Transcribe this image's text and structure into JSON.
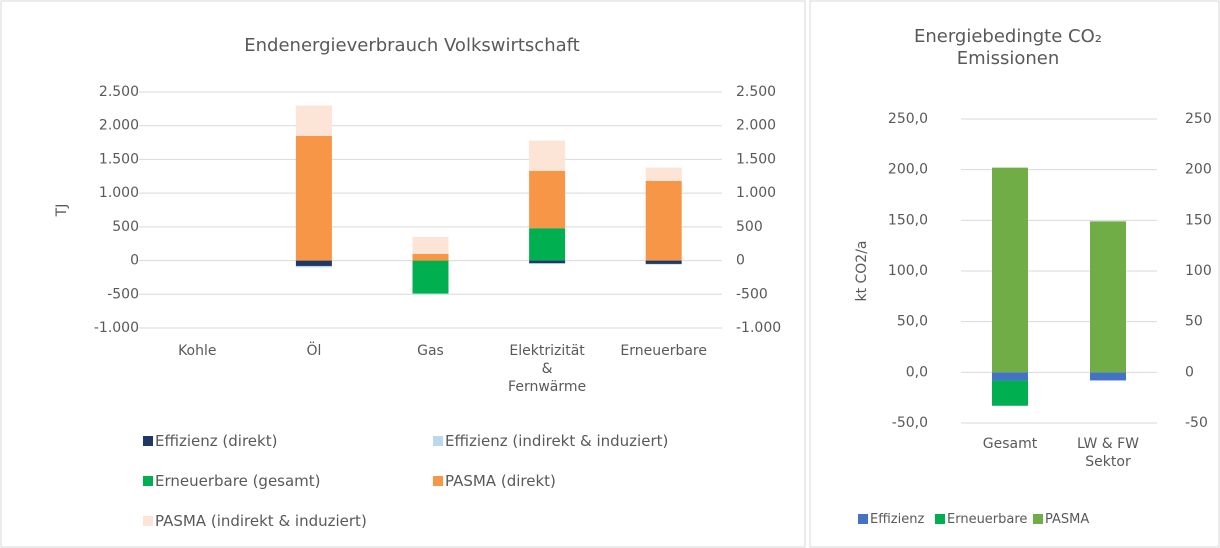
{
  "chart_data": [
    {
      "type": "bar",
      "stacked": true,
      "title": "Endenergieverbrauch Volkswirtschaft",
      "y_label": "TJ",
      "categories": [
        "Kohle",
        "Öl",
        "Gas",
        "Elektrizität\n&\nFernwärme",
        "Erneuerbare"
      ],
      "series": [
        {
          "name": "Effizienz (direkt)",
          "color": "#1f3864",
          "values": [
            0,
            -80,
            0,
            -40,
            -50
          ]
        },
        {
          "name": "Effizienz (indirekt & induziert)",
          "color": "#bdd7ee",
          "values": [
            0,
            -20,
            0,
            -10,
            -10
          ]
        },
        {
          "name": "Erneuerbare (gesamt)",
          "color": "#00b050",
          "values": [
            0,
            0,
            -490,
            480,
            0
          ]
        },
        {
          "name": "PASMA (direkt)",
          "color": "#f79646",
          "values": [
            0,
            1850,
            100,
            850,
            1180
          ]
        },
        {
          "name": "PASMA (indirekt & induziert)",
          "color": "#fce4d6",
          "values": [
            0,
            450,
            250,
            450,
            200
          ]
        }
      ],
      "ylim": [
        -1000,
        2500
      ],
      "yticks": [
        {
          "value": -1000,
          "label": "-1.000"
        },
        -500,
        0,
        500,
        {
          "value": 1000,
          "label": "1.000"
        },
        {
          "value": 1500,
          "label": "1.500"
        },
        {
          "value": 2000,
          "label": "2.000"
        },
        {
          "value": 2500,
          "label": "2.500"
        }
      ],
      "y2lim": [
        -1000,
        2500
      ],
      "y2ticks": [
        {
          "value": -1000,
          "label": "-1.000"
        },
        -500,
        0,
        500,
        {
          "value": 1000,
          "label": "1.000"
        },
        {
          "value": 1500,
          "label": "1.500"
        },
        {
          "value": 2000,
          "label": "2.000"
        },
        {
          "value": 2500,
          "label": "2.500"
        }
      ],
      "grid": true,
      "legend": "bottom"
    },
    {
      "type": "bar",
      "stacked": true,
      "title": "Energiebedingte CO₂\nEmissionen",
      "y_label": "kt CO2/a",
      "categories": [
        "Gesamt",
        "LW & FW\nSektor"
      ],
      "series": [
        {
          "name": "Effizienz",
          "color": "#4472c4",
          "values": [
            -8,
            -8
          ]
        },
        {
          "name": "Erneuerbare",
          "color": "#00b050",
          "values": [
            -25,
            0
          ]
        },
        {
          "name": "PASMA",
          "color": "#70ad47",
          "values": [
            202,
            149
          ]
        }
      ],
      "ylim": [
        -50,
        250
      ],
      "yticks": [
        {
          "value": -50,
          "label": "-50,0"
        },
        {
          "value": 0,
          "label": "0,0"
        },
        {
          "value": 50,
          "label": "50,0"
        },
        {
          "value": 100,
          "label": "100,0"
        },
        {
          "value": 150,
          "label": "150,0"
        },
        {
          "value": 200,
          "label": "200,0"
        },
        {
          "value": 250,
          "label": "250,0"
        }
      ],
      "y2lim": [
        -50,
        250
      ],
      "y2ticks": [
        -50,
        0,
        50,
        100,
        150,
        200,
        250
      ],
      "grid": true,
      "legend": "bottom"
    }
  ]
}
